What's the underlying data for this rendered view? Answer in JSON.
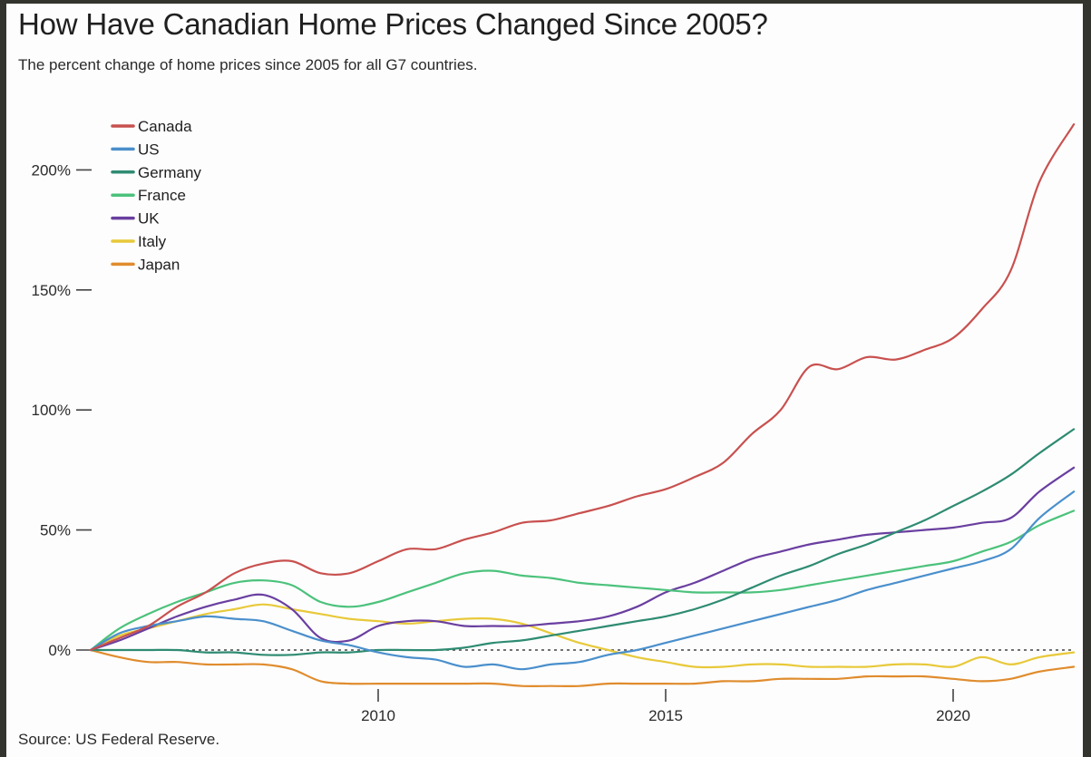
{
  "header": {
    "title": "How Have Canadian Home Prices Changed Since 2005?",
    "subtitle": "The percent change of home prices since 2005 for all G7 countries."
  },
  "footer": {
    "source": "Source: US Federal Reserve."
  },
  "chart_data": {
    "type": "line",
    "title": "How Have Canadian Home Prices Changed Since 2005?",
    "subtitle": "The percent change of home prices since 2005 for all G7 countries.",
    "xlabel": "",
    "ylabel": "",
    "xlim": [
      2005,
      2022.1
    ],
    "ylim": [
      -20,
      225
    ],
    "x_ticks": [
      {
        "value": 2010,
        "label": "2010"
      },
      {
        "value": 2015,
        "label": "2015"
      },
      {
        "value": 2020,
        "label": "2020"
      }
    ],
    "y_ticks": [
      {
        "value": 0,
        "label": "0%"
      },
      {
        "value": 50,
        "label": "50%"
      },
      {
        "value": 100,
        "label": "100%"
      },
      {
        "value": 150,
        "label": "150%"
      },
      {
        "value": 200,
        "label": "200%"
      }
    ],
    "grid": false,
    "reference_line": {
      "value": 0,
      "style": "dotted"
    },
    "legend_position": "top-left",
    "x": [
      2005,
      2005.5,
      2006,
      2006.5,
      2007,
      2007.5,
      2008,
      2008.5,
      2009,
      2009.5,
      2010,
      2010.5,
      2011,
      2011.5,
      2012,
      2012.5,
      2013,
      2013.5,
      2014,
      2014.5,
      2015,
      2015.5,
      2016,
      2016.5,
      2017,
      2017.5,
      2018,
      2018.5,
      2019,
      2019.5,
      2020,
      2020.5,
      2021,
      2021.5,
      2022.1
    ],
    "series": [
      {
        "name": "Canada",
        "color": "#c8514f",
        "values": [
          0,
          5,
          10,
          18,
          24,
          32,
          36,
          37,
          32,
          32,
          37,
          42,
          42,
          46,
          49,
          53,
          54,
          57,
          60,
          64,
          67,
          72,
          78,
          90,
          100,
          118,
          117,
          122,
          121,
          125,
          130,
          142,
          158,
          195,
          219
        ]
      },
      {
        "name": "US",
        "color": "#4a8fcc",
        "values": [
          0,
          7,
          10,
          12,
          14,
          13,
          12,
          8,
          4,
          2,
          -1,
          -3,
          -4,
          -7,
          -6,
          -8,
          -6,
          -5,
          -2,
          0,
          3,
          6,
          9,
          12,
          15,
          18,
          21,
          25,
          28,
          31,
          34,
          37,
          42,
          55,
          66
        ]
      },
      {
        "name": "Germany",
        "color": "#2e8b72",
        "values": [
          0,
          0,
          0,
          0,
          -1,
          -1,
          -2,
          -2,
          -1,
          -1,
          0,
          0,
          0,
          1,
          3,
          4,
          6,
          8,
          10,
          12,
          14,
          17,
          21,
          26,
          31,
          35,
          40,
          44,
          49,
          54,
          60,
          66,
          73,
          82,
          92
        ]
      },
      {
        "name": "France",
        "color": "#4cc27c",
        "values": [
          0,
          9,
          15,
          20,
          24,
          28,
          29,
          27,
          20,
          18,
          20,
          24,
          28,
          32,
          33,
          31,
          30,
          28,
          27,
          26,
          25,
          24,
          24,
          24,
          25,
          27,
          29,
          31,
          33,
          35,
          37,
          41,
          45,
          52,
          58
        ]
      },
      {
        "name": "UK",
        "color": "#6a3fa0",
        "values": [
          0,
          4,
          9,
          14,
          18,
          21,
          23,
          17,
          5,
          4,
          10,
          12,
          12,
          10,
          10,
          10,
          11,
          12,
          14,
          18,
          24,
          28,
          33,
          38,
          41,
          44,
          46,
          48,
          49,
          50,
          51,
          53,
          55,
          66,
          76
        ]
      },
      {
        "name": "Italy",
        "color": "#e8c93a",
        "values": [
          0,
          6,
          9,
          12,
          15,
          17,
          19,
          17,
          15,
          13,
          12,
          11,
          12,
          13,
          13,
          11,
          7,
          3,
          0,
          -3,
          -5,
          -7,
          -7,
          -6,
          -6,
          -7,
          -7,
          -7,
          -6,
          -6,
          -7,
          -3,
          -6,
          -3,
          -1
        ]
      },
      {
        "name": "Japan",
        "color": "#e08c2e",
        "values": [
          0,
          -3,
          -5,
          -5,
          -6,
          -6,
          -6,
          -8,
          -13,
          -14,
          -14,
          -14,
          -14,
          -14,
          -14,
          -15,
          -15,
          -15,
          -14,
          -14,
          -14,
          -14,
          -13,
          -13,
          -12,
          -12,
          -12,
          -11,
          -11,
          -11,
          -12,
          -13,
          -12,
          -9,
          -7
        ]
      }
    ]
  }
}
